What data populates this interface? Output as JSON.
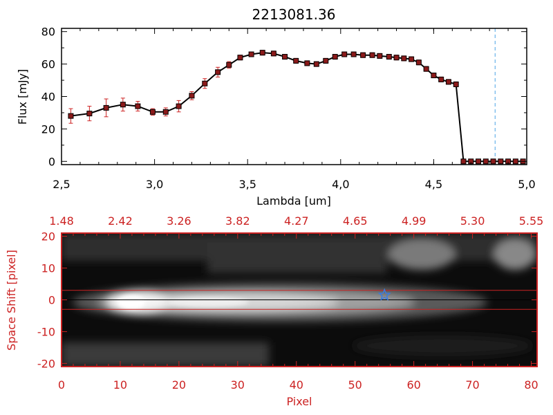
{
  "colors": {
    "axis_black": "#000000",
    "accent_red": "#cc2222",
    "errorbar_red": "#cc2222",
    "marker_fill": "#8b1a1a",
    "line": "#000000",
    "dashed_line": "#4aa3e6",
    "star": "#3a7be0"
  },
  "chart_data": [
    {
      "type": "line",
      "title": "2213081.36",
      "xlabel": "Lambda [um]",
      "ylabel": "Flux [mJy]",
      "xlim": [
        2.5,
        5.0
      ],
      "ylim": [
        -2,
        82
      ],
      "xticks": [
        2.5,
        3.0,
        3.5,
        4.0,
        4.5,
        5.0
      ],
      "xtick_labels": [
        "2,5",
        "3,0",
        "3,5",
        "4,0",
        "4,5",
        "5,0"
      ],
      "yticks": [
        0,
        20,
        40,
        60,
        80
      ],
      "ytick_labels": [
        "0",
        "20",
        "40",
        "60",
        "80"
      ],
      "grid": false,
      "vline_x": 4.83,
      "series": [
        {
          "x": [
            2.55,
            2.65,
            2.74,
            2.83,
            2.91,
            2.99,
            3.06,
            3.13,
            3.2,
            3.27,
            3.34,
            3.4,
            3.46,
            3.52,
            3.58,
            3.64,
            3.7,
            3.76,
            3.82,
            3.87,
            3.92,
            3.97,
            4.02,
            4.07,
            4.12,
            4.17,
            4.21,
            4.26,
            4.3,
            4.34,
            4.38,
            4.42,
            4.46,
            4.5,
            4.54,
            4.58,
            4.62,
            4.66,
            4.7,
            4.74,
            4.78,
            4.82,
            4.86,
            4.9,
            4.94,
            4.98
          ],
          "y": [
            28,
            29.5,
            33,
            35,
            34,
            30.5,
            30.5,
            34,
            40.5,
            48,
            55,
            59.5,
            64,
            66,
            67,
            66.5,
            64.5,
            62,
            60.5,
            60,
            62,
            64.5,
            66,
            66,
            65.5,
            65.5,
            65,
            64.5,
            64,
            63.5,
            63,
            61,
            57,
            53,
            50.5,
            49,
            47.5,
            0,
            0,
            0,
            0,
            0,
            0,
            0,
            0,
            0
          ],
          "yerr": [
            4.5,
            4.5,
            5.5,
            4,
            3,
            2,
            2.5,
            3.5,
            2.5,
            3,
            3,
            2,
            1.5,
            1.5,
            1.5,
            1.5,
            1.5,
            1.5,
            1.5,
            1.5,
            1.5,
            1.5,
            1.5,
            1.5,
            1.5,
            1.5,
            1.5,
            1.5,
            1.5,
            1.5,
            1.5,
            1.5,
            1.5,
            1.5,
            1.5,
            1.5,
            1.5,
            0,
            0,
            0,
            0,
            0,
            0,
            0,
            0,
            0
          ]
        }
      ]
    },
    {
      "type": "heatmap",
      "xlabel": "Pixel",
      "ylabel": "Space Shift [pixel]",
      "xlim": [
        0,
        81
      ],
      "ylim": [
        -21,
        21
      ],
      "xticks": [
        0,
        10,
        20,
        30,
        40,
        50,
        60,
        70,
        80
      ],
      "xtick_labels": [
        "0",
        "10",
        "20",
        "30",
        "40",
        "50",
        "60",
        "70",
        "80"
      ],
      "yticks": [
        -20,
        -10,
        0,
        10,
        20
      ],
      "ytick_labels": [
        "-20",
        "-10",
        "0",
        "10",
        "20"
      ],
      "top_tick_labels": [
        "1.48",
        "2.42",
        "3.26",
        "3.82",
        "4.27",
        "4.65",
        "4.99",
        "5.30",
        "5.55"
      ],
      "hlines_red": [
        3,
        -3
      ],
      "hline_black": 0,
      "star_marker": {
        "x": 55,
        "y": 1.5
      }
    }
  ]
}
